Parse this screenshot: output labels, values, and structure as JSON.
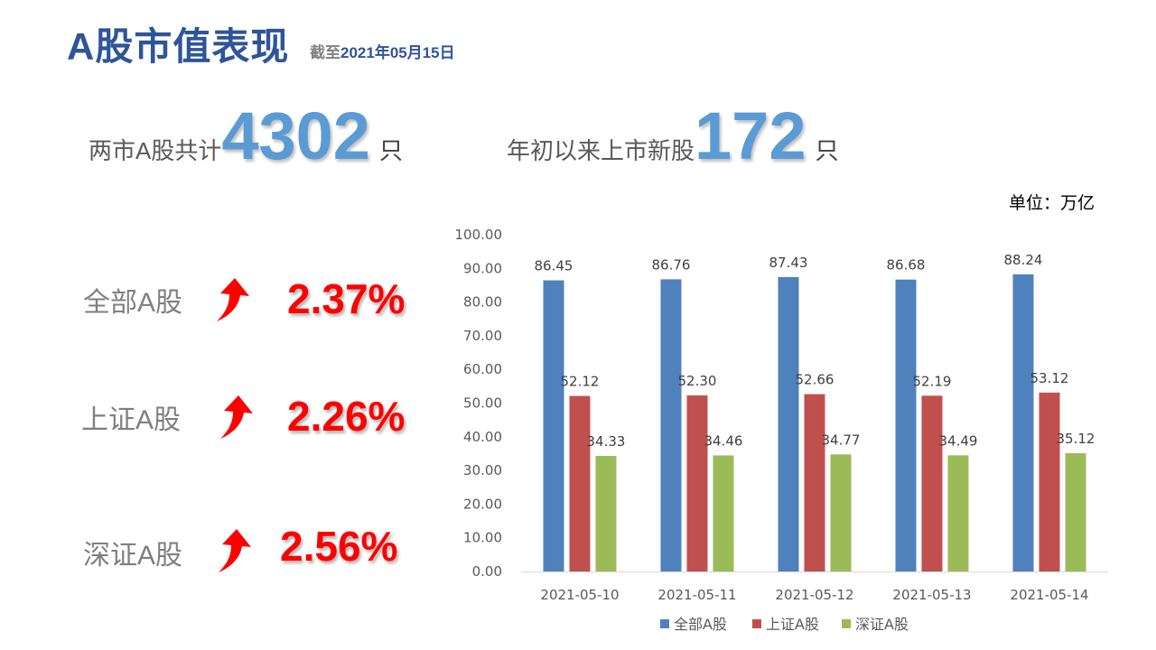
{
  "header": {
    "title": "A股市值表现",
    "date_prefix": "截至",
    "date_value": "2021年05月15日"
  },
  "stats": {
    "total": {
      "label": "两市A股共计",
      "value": "4302",
      "unit": "只"
    },
    "new_listings": {
      "label": "年初以来上市新股",
      "value": "172",
      "unit": "只"
    }
  },
  "unit_label": "单位：万亿",
  "indices": [
    {
      "name": "全部A股",
      "change": "2.37%",
      "direction": "up",
      "icon": "up-arrow-icon"
    },
    {
      "name": "上证A股",
      "change": "2.26%",
      "direction": "up",
      "icon": "up-arrow-icon"
    },
    {
      "name": "深证A股",
      "change": "2.56%",
      "direction": "up",
      "icon": "up-arrow-icon"
    }
  ],
  "colors": {
    "title": "#2E5597",
    "big_number": "#5B9BD5",
    "change_up": "#FF0000"
  },
  "chart_data": {
    "type": "bar",
    "categories": [
      "2021-05-10",
      "2021-05-11",
      "2021-05-12",
      "2021-05-13",
      "2021-05-14"
    ],
    "series": [
      {
        "name": "全部A股",
        "values": [
          86.45,
          86.76,
          87.43,
          86.68,
          88.24
        ],
        "color": "#4F81BD"
      },
      {
        "name": "上证A股",
        "values": [
          52.12,
          52.3,
          52.66,
          52.19,
          53.12
        ],
        "color": "#C0504D"
      },
      {
        "name": "深证A股",
        "values": [
          34.33,
          34.46,
          34.77,
          34.49,
          35.12
        ],
        "color": "#9BBB59"
      }
    ],
    "ylim": [
      0,
      100
    ],
    "yticks": [
      "0.00",
      "10.00",
      "20.00",
      "30.00",
      "40.00",
      "50.00",
      "60.00",
      "70.00",
      "80.00",
      "90.00",
      "100.00"
    ],
    "data_labels": true,
    "gridlines": false,
    "legend_position": "bottom"
  }
}
